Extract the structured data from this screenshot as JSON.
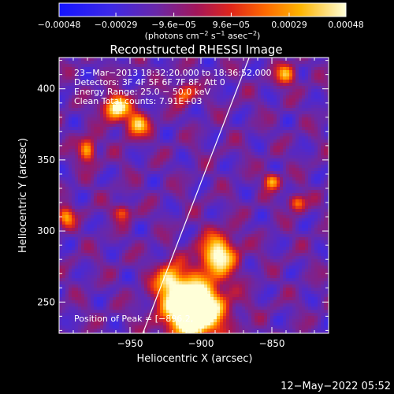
{
  "chart_data": {
    "type": "heatmap",
    "title": "Reconstructed RHESSI Image",
    "xlabel": "Heliocentric X (arcsec)",
    "ylabel": "Heliocentric Y (arcsec)",
    "xlim": [
      -1000,
      -810
    ],
    "ylim": [
      228,
      422
    ],
    "x_ticks": [
      {
        "value": -950,
        "label": "−950"
      },
      {
        "value": -900,
        "label": "−900"
      },
      {
        "value": -850,
        "label": "−850"
      }
    ],
    "y_ticks": [
      {
        "value": 250,
        "label": "250"
      },
      {
        "value": 300,
        "label": "300"
      },
      {
        "value": 350,
        "label": "350"
      },
      {
        "value": 400,
        "label": "400"
      }
    ],
    "colorbar": {
      "range": [
        -0.00048,
        0.00048
      ],
      "ticks": [
        {
          "value": -0.00048,
          "label": "−0.00048"
        },
        {
          "value": -0.00029,
          "label": "−0.00029"
        },
        {
          "value": -9.6e-05,
          "label": "−9.6e−05"
        },
        {
          "value": 9.6e-05,
          "label": "9.6e−05"
        },
        {
          "value": 0.00029,
          "label": "0.00029"
        },
        {
          "value": 0.00048,
          "label": "0.00048"
        }
      ],
      "unit_parts": [
        "(photons cm",
        "−2",
        " s",
        "−1",
        " asec",
        "−2",
        ")"
      ]
    },
    "annotations": {
      "time": "23−Mar−2013 18:32:20.000 to 18:36:52.000",
      "detectors": "Detectors: 3F 4F 5F 6F 7F 8F, Att 0",
      "energy": "Energy Range: 25.0 − 50.0 keV",
      "clean": "Clean     Total counts: 7.91E+03",
      "peak": "Position of Peak = [−896.2,"
    },
    "peak": {
      "x": -896.2
    },
    "limb": {
      "x_at_ylim_min": -941,
      "x_at_ylim_max": -866
    },
    "hotspots": [
      {
        "x": -905,
        "y": 245,
        "amp": 1.15,
        "sx": 14,
        "sy": 14
      },
      {
        "x": -888,
        "y": 283,
        "amp": 0.7,
        "sx": 9,
        "sy": 10
      },
      {
        "x": -922,
        "y": 265,
        "amp": 0.55,
        "sx": 7,
        "sy": 8
      },
      {
        "x": -960,
        "y": 387,
        "amp": 0.75,
        "sx": 6,
        "sy": 6
      },
      {
        "x": -945,
        "y": 375,
        "amp": 0.55,
        "sx": 6,
        "sy": 6
      },
      {
        "x": -980,
        "y": 357,
        "amp": 0.55,
        "sx": 4,
        "sy": 6
      },
      {
        "x": -912,
        "y": 397,
        "amp": 0.45,
        "sx": 5,
        "sy": 5
      },
      {
        "x": -840,
        "y": 410,
        "amp": 0.5,
        "sx": 5,
        "sy": 5
      },
      {
        "x": -850,
        "y": 335,
        "amp": 0.5,
        "sx": 4,
        "sy": 4
      },
      {
        "x": -832,
        "y": 320,
        "amp": 0.45,
        "sx": 4,
        "sy": 4
      },
      {
        "x": -955,
        "y": 313,
        "amp": 0.4,
        "sx": 4,
        "sy": 4
      },
      {
        "x": -995,
        "y": 310,
        "amp": 0.45,
        "sx": 4,
        "sy": 5
      }
    ]
  },
  "footer": {
    "date": "12−May−2022 05:52"
  }
}
